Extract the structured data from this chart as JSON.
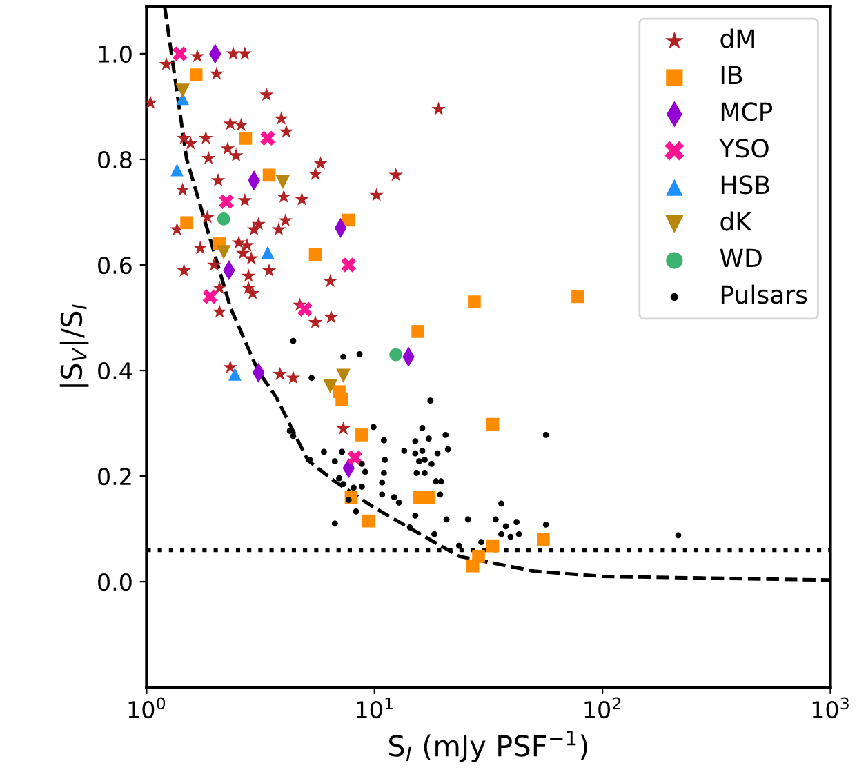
{
  "chart_data": {
    "type": "scatter",
    "xlabel": "S$_{I}$ (mJy PSF$^{−1}$)",
    "ylabel": "|S$_{V}$|/S$_{I}$",
    "log": "x",
    "xlim": [
      1,
      1000
    ],
    "ylim": [
      -0.2,
      1.09
    ],
    "xticks": [
      {
        "value": 1,
        "label": "10$^{0}$"
      },
      {
        "value": 10,
        "label": "10$^{1}$"
      },
      {
        "value": 100,
        "label": "10$^{2}$"
      },
      {
        "value": 1000,
        "label": "10$^{3}$"
      }
    ],
    "yticks": [
      {
        "value": 0,
        "label": "0.0"
      },
      0.2,
      0.4,
      0.6,
      0.8,
      {
        "value": 1,
        "label": "1.0"
      }
    ],
    "grid": false,
    "legend": "top right",
    "ref_lines": [
      {
        "axis": "y",
        "value": 0.06,
        "color": "#000000",
        "line_style": "dotted"
      }
    ],
    "series": [
      {
        "name": "dM",
        "color": "#b22222",
        "marker": "star",
        "x": [
          1.22,
          1.67,
          2.4,
          2.7,
          2.03,
          1.04,
          3.36,
          3.9,
          4.1,
          2.33,
          2.6,
          1.46,
          1.82,
          1.56,
          2.27,
          2.47,
          1.87,
          2.06,
          1.44,
          2.7,
          4.0,
          4.8,
          1.85,
          3.1,
          4.07,
          2.96,
          3.8,
          1.36,
          1.72,
          2.54,
          2.76,
          2.65,
          2.88,
          1.98,
          3.45,
          1.46,
          2.8,
          2.8,
          2.92,
          4.7,
          2.09,
          2.09,
          2.33,
          3.85,
          4.4,
          19.1,
          12.4,
          10.2,
          5.8,
          5.5,
          6.4,
          5.5,
          6.45,
          7.3
        ],
        "values": [
          0.98,
          0.995,
          1.0,
          1.0,
          0.962,
          0.907,
          0.922,
          0.877,
          0.852,
          0.867,
          0.865,
          0.84,
          0.84,
          0.83,
          0.82,
          0.807,
          0.802,
          0.76,
          0.742,
          0.722,
          0.729,
          0.724,
          0.69,
          0.677,
          0.684,
          0.667,
          0.667,
          0.667,
          0.632,
          0.642,
          0.637,
          0.622,
          0.612,
          0.6,
          0.589,
          0.589,
          0.579,
          0.556,
          0.546,
          0.524,
          0.556,
          0.511,
          0.406,
          0.393,
          0.386,
          0.895,
          0.77,
          0.732,
          0.792,
          0.772,
          0.569,
          0.491,
          0.501,
          0.29
        ]
      },
      {
        "name": "IB",
        "color": "#ff8c00",
        "marker": "square",
        "x": [
          1.65,
          2.72,
          3.45,
          1.5,
          2.09,
          5.5,
          7.7,
          27.4,
          15.5,
          7.0,
          7.2,
          8.8,
          33,
          7.9,
          15.8,
          17.3,
          9.4,
          33,
          28.6,
          27,
          55,
          78
        ],
        "values": [
          0.96,
          0.84,
          0.77,
          0.68,
          0.64,
          0.62,
          0.685,
          0.53,
          0.474,
          0.36,
          0.345,
          0.278,
          0.298,
          0.16,
          0.16,
          0.16,
          0.115,
          0.068,
          0.048,
          0.03,
          0.08,
          0.54
        ]
      },
      {
        "name": "MCP",
        "color": "#9400d3",
        "marker": "diamond",
        "x": [
          2.0,
          2.96,
          2.3,
          3.1,
          7.1,
          14.1,
          7.7
        ],
        "values": [
          1.0,
          0.76,
          0.59,
          0.396,
          0.67,
          0.426,
          0.215
        ]
      },
      {
        "name": "YSO",
        "color": "#ff1493",
        "marker": "cross",
        "x": [
          1.4,
          3.4,
          2.24,
          1.9,
          7.7,
          4.95,
          8.2
        ],
        "values": [
          1.0,
          0.84,
          0.72,
          0.54,
          0.6,
          0.516,
          0.235
        ]
      },
      {
        "name": "HSB",
        "color": "#1e90ff",
        "marker": "triangle",
        "x": [
          1.44,
          1.36,
          3.4,
          2.44
        ],
        "values": [
          0.915,
          0.78,
          0.624,
          0.393
        ]
      },
      {
        "name": "dK",
        "color": "#b8860b",
        "marker": "triangle_down",
        "x": [
          1.44,
          3.96,
          2.18,
          7.3,
          6.4
        ],
        "values": [
          0.93,
          0.757,
          0.624,
          0.39,
          0.37
        ]
      },
      {
        "name": "WD",
        "color": "#3cb371",
        "marker": "circle",
        "x": [
          2.18,
          12.4
        ],
        "values": [
          0.687,
          0.43
        ]
      },
      {
        "name": "Pulsars",
        "color": "#000000",
        "marker": "dot",
        "x": [
          4.4,
          5.3,
          4.25,
          4.4,
          5.2,
          7.3,
          8.6,
          17.6,
          9.9,
          16.2,
          11,
          20.5,
          15.1,
          17.3,
          6.0,
          7.2,
          13.5,
          15.1,
          16.2,
          18.9,
          21,
          6.7,
          11.1,
          15.7,
          16.6,
          17.8,
          8.8,
          11,
          15.3,
          16.6,
          9.1,
          7.0,
          7.3,
          8.8,
          10.8,
          18.6,
          19.6,
          8.1,
          7.7,
          10.8,
          12.2,
          12.8,
          19.4,
          8.3,
          6.7,
          15.1,
          14.3,
          20.7,
          25.7,
          18.3,
          36,
          34,
          37.7,
          42,
          36,
          39.5,
          43,
          23.5,
          29.4,
          56.5,
          56.5,
          215
        ],
        "values": [
          0.456,
          0.386,
          0.286,
          0.276,
          0.231,
          0.426,
          0.431,
          0.343,
          0.293,
          0.291,
          0.268,
          0.278,
          0.266,
          0.271,
          0.246,
          0.246,
          0.248,
          0.243,
          0.248,
          0.243,
          0.251,
          0.228,
          0.231,
          0.228,
          0.231,
          0.223,
          0.223,
          0.206,
          0.206,
          0.206,
          0.208,
          0.196,
          0.185,
          0.18,
          0.188,
          0.19,
          0.19,
          0.178,
          0.155,
          0.165,
          0.16,
          0.15,
          0.165,
          0.133,
          0.11,
          0.125,
          0.103,
          0.118,
          0.118,
          0.09,
          0.148,
          0.118,
          0.105,
          0.113,
          0.09,
          0.085,
          0.09,
          0.068,
          0.075,
          0.278,
          0.108,
          0.088
        ]
      },
      {
        "type": "line",
        "color": "#000000",
        "line_style": "dashed",
        "x": [
          1.2,
          1.5,
          2.33,
          3.08,
          3.7,
          5.1,
          6.7,
          10,
          23.5,
          50,
          100,
          1000
        ],
        "values": [
          1.09,
          0.8,
          0.52,
          0.4,
          0.35,
          0.23,
          0.19,
          0.14,
          0.048,
          0.02,
          0.01,
          0.003
        ]
      }
    ]
  }
}
